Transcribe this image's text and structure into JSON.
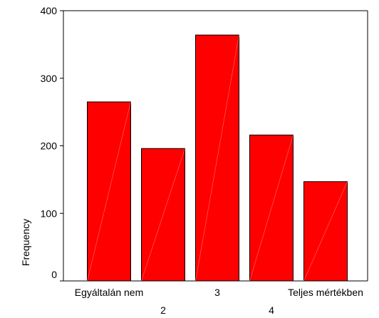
{
  "chart_data": {
    "type": "bar",
    "title": "",
    "xlabel": "",
    "ylabel": "Frequency",
    "ylim": [
      0,
      400
    ],
    "yticks": [
      0,
      100,
      200,
      300,
      400
    ],
    "grid": false,
    "legend": "none",
    "bar_color": "#ff0000",
    "categories": [
      "Egyáltalán nem",
      "2",
      "3",
      "4",
      "Teljes mértékben"
    ],
    "values": [
      265,
      196,
      364,
      216,
      147
    ]
  }
}
